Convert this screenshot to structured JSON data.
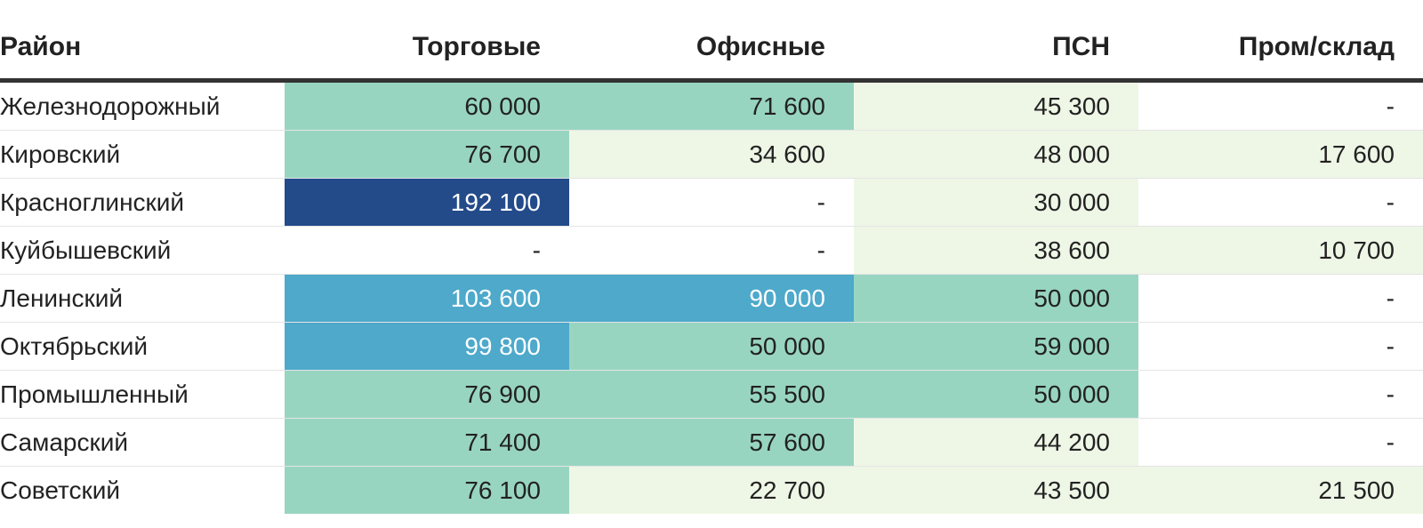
{
  "chart_data": {
    "type": "table",
    "columns": [
      "Район",
      "Торговые",
      "Офисные",
      "ПСН",
      "Пром/склад"
    ],
    "rows": [
      {
        "district": "Железнодорожный",
        "values": [
          60000,
          71600,
          45300,
          null
        ],
        "cells": [
          "60 000",
          "71 600",
          "45 300",
          "-"
        ]
      },
      {
        "district": "Кировский",
        "values": [
          76700,
          34600,
          48000,
          17600
        ],
        "cells": [
          "76 700",
          "34 600",
          "48 000",
          "17 600"
        ]
      },
      {
        "district": "Красноглинский",
        "values": [
          192100,
          null,
          30000,
          null
        ],
        "cells": [
          "192 100",
          "-",
          "30 000",
          "-"
        ]
      },
      {
        "district": "Куйбышевский",
        "values": [
          null,
          null,
          38600,
          10700
        ],
        "cells": [
          "-",
          "-",
          "38 600",
          "10 700"
        ]
      },
      {
        "district": "Ленинский",
        "values": [
          103600,
          90000,
          50000,
          null
        ],
        "cells": [
          "103 600",
          "90 000",
          "50 000",
          "-"
        ]
      },
      {
        "district": "Октябрьский",
        "values": [
          99800,
          50000,
          59000,
          null
        ],
        "cells": [
          "99 800",
          "50 000",
          "59 000",
          "-"
        ]
      },
      {
        "district": "Промышленный",
        "values": [
          76900,
          55500,
          50000,
          null
        ],
        "cells": [
          "76 900",
          "55 500",
          "50 000",
          "-"
        ]
      },
      {
        "district": "Самарский",
        "values": [
          71400,
          57600,
          44200,
          null
        ],
        "cells": [
          "71 400",
          "57 600",
          "44 200",
          "-"
        ]
      },
      {
        "district": "Советский",
        "values": [
          76100,
          22700,
          43500,
          21500
        ],
        "cells": [
          "76 100",
          "22 700",
          "43 500",
          "21 500"
        ]
      }
    ],
    "color_scale": [
      {
        "min": 0,
        "max": 50000,
        "color": "#eef7e6"
      },
      {
        "min": 50000,
        "max": 80000,
        "color": "#98d5c1"
      },
      {
        "min": 80000,
        "max": 150000,
        "color": "#4ea9cb"
      },
      {
        "min": 150000,
        "max": 250000,
        "color": "#234b8a"
      }
    ],
    "empty_color": "#ffffff",
    "dark_text_colors": [
      "#4ea9cb",
      "#234b8a"
    ]
  }
}
